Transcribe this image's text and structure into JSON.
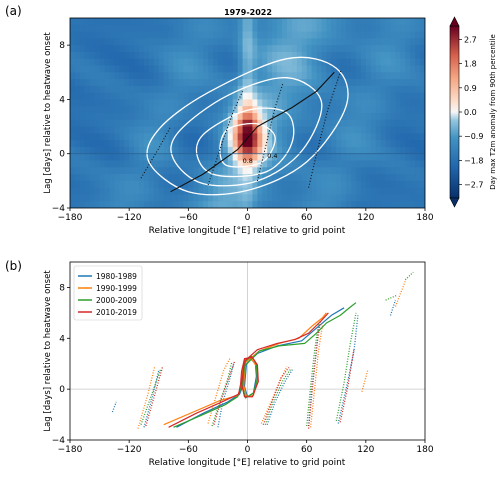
{
  "figure": {
    "panel_a_label": "(a)",
    "panel_b_label": "(b)"
  },
  "chart_data": [
    {
      "type": "heatmap",
      "title": "1979-2022",
      "xlabel": "Relative longitude [°E] relative to grid point",
      "ylabel": "Lag [days] relative to heatwave onset",
      "xlim": [
        -180,
        180
      ],
      "ylim": [
        -4,
        10
      ],
      "xticks": [
        "−180",
        "−120",
        "−60",
        "0",
        "60",
        "120",
        "180"
      ],
      "yticks": [
        "−4",
        "0",
        "4",
        "8"
      ],
      "colorbar": {
        "label": "Day max T2m anomaly from 90th percentile",
        "range": [
          -3.2,
          3.2
        ],
        "ticks": [
          "2.7",
          "1.8",
          "0.9",
          "0.0",
          "−0.9",
          "−1.8",
          "−2.7"
        ],
        "low_color": "#08306b",
        "mid_color": "#f7f7f7",
        "high_color": "#67001f"
      },
      "contour_labels": [
        "0.8",
        "0.4"
      ],
      "contours": [
        {
          "value": 0.2,
          "points": [
            [
              -60,
              -2.8
            ],
            [
              0,
              -2.7
            ],
            [
              60,
              -0.6
            ],
            [
              100,
              3.5
            ],
            [
              90,
              6.3
            ],
            [
              40,
              7.0
            ],
            [
              -40,
              4.5
            ],
            [
              -90,
              1.8
            ],
            [
              -100,
              -0.6
            ]
          ]
        },
        {
          "value": 0.4,
          "points": [
            [
              -45,
              -2.2
            ],
            [
              10,
              -2.0
            ],
            [
              55,
              0.2
            ],
            [
              75,
              3.8
            ],
            [
              40,
              5.6
            ],
            [
              -20,
              4.3
            ],
            [
              -70,
              1.6
            ],
            [
              -75,
              -0.4
            ]
          ]
        },
        {
          "value": 0.6,
          "points": [
            [
              -30,
              -1.6
            ],
            [
              20,
              -1.3
            ],
            [
              45,
              0.8
            ],
            [
              40,
              3.0
            ],
            [
              0,
              3.2
            ],
            [
              -45,
              1.4
            ],
            [
              -50,
              -0.4
            ]
          ]
        },
        {
          "value": 0.8,
          "points": [
            [
              -20,
              -0.9
            ],
            [
              15,
              -0.6
            ],
            [
              28,
              1.2
            ],
            [
              10,
              2.2
            ],
            [
              -20,
              1.8
            ],
            [
              -28,
              0.3
            ]
          ]
        }
      ],
      "mean_track": [
        [
          -78,
          -2.8
        ],
        [
          -45,
          -1.5
        ],
        [
          -10,
          0.3
        ],
        [
          10,
          2.0
        ],
        [
          45,
          3.4
        ],
        [
          70,
          4.6
        ],
        [
          88,
          6.0
        ]
      ],
      "dotted_tracks": [
        [
          [
            -108,
            -1.8
          ],
          [
            -90,
            0.4
          ],
          [
            -78,
            2.0
          ]
        ],
        [
          [
            -40,
            -2.3
          ],
          [
            -28,
            0.3
          ],
          [
            -15,
            3.0
          ],
          [
            -5,
            4.6
          ]
        ],
        [
          [
            10,
            -2.0
          ],
          [
            20,
            1.0
          ],
          [
            28,
            3.4
          ],
          [
            36,
            5.2
          ]
        ],
        [
          [
            62,
            -2.5
          ],
          [
            72,
            0.6
          ],
          [
            82,
            3.4
          ],
          [
            95,
            6.2
          ]
        ]
      ]
    },
    {
      "type": "line",
      "xlabel": "Relative longitude [°E] relative to grid point",
      "ylabel": "Lag [days] relative to heatwave onset",
      "xlim": [
        -180,
        180
      ],
      "ylim": [
        -4,
        10
      ],
      "xticks": [
        "−180",
        "−120",
        "−60",
        "0",
        "60",
        "120",
        "180"
      ],
      "yticks": [
        "−4",
        "0",
        "4",
        "8"
      ],
      "legend_position": "top-left",
      "series": [
        {
          "name": "1980-1989",
          "color": "#1f77b4",
          "main": [
            [
              -72,
              -3.0
            ],
            [
              -45,
              -1.9
            ],
            [
              -20,
              -1.0
            ],
            [
              -8,
              -0.4
            ],
            [
              -4,
              0.4
            ],
            [
              -3,
              1.4
            ],
            [
              -2,
              2.2
            ],
            [
              3,
              2.4
            ],
            [
              8,
              2.0
            ],
            [
              9,
              1.0
            ],
            [
              6,
              -0.3
            ],
            [
              0,
              -0.6
            ],
            [
              -3,
              0.2
            ],
            [
              -1,
              2.0
            ],
            [
              10,
              2.8
            ],
            [
              30,
              3.4
            ],
            [
              55,
              3.8
            ],
            [
              70,
              4.8
            ],
            [
              85,
              5.8
            ],
            [
              98,
              6.4
            ]
          ],
          "dotted": [
            [
              [
                -137,
                -1.8
              ],
              [
                -133,
                -1.0
              ]
            ],
            [
              [
                -105,
                -3.0
              ],
              [
                -96,
                -0.5
              ],
              [
                -90,
                1.5
              ]
            ],
            [
              [
                -30,
                -3.0
              ],
              [
                -25,
                -1.0
              ],
              [
                -18,
                0.8
              ],
              [
                -14,
                2.0
              ]
            ],
            [
              [
                20,
                -2.8
              ],
              [
                28,
                -1.0
              ],
              [
                38,
                0.6
              ],
              [
                46,
                1.6
              ]
            ],
            [
              [
                62,
                -2.9
              ],
              [
                65,
                0.0
              ],
              [
                70,
                3.0
              ],
              [
                72,
                5.0
              ]
            ],
            [
              [
                92,
                -2.7
              ],
              [
                100,
                0.0
              ],
              [
                108,
                3.0
              ],
              [
                112,
                5.8
              ]
            ],
            [
              [
                145,
                5.8
              ],
              [
                150,
                7.0
              ]
            ]
          ]
        },
        {
          "name": "1990-1999",
          "color": "#ff7f0e",
          "main": [
            [
              -85,
              -2.8
            ],
            [
              -55,
              -1.8
            ],
            [
              -28,
              -0.9
            ],
            [
              -10,
              -0.5
            ],
            [
              -6,
              0.3
            ],
            [
              -5,
              1.4
            ],
            [
              -3,
              2.3
            ],
            [
              4,
              2.4
            ],
            [
              9,
              1.8
            ],
            [
              10,
              0.7
            ],
            [
              6,
              -0.5
            ],
            [
              -1,
              -0.6
            ],
            [
              -4,
              0.3
            ],
            [
              -2,
              2.1
            ],
            [
              12,
              3.0
            ],
            [
              32,
              3.6
            ],
            [
              52,
              4.0
            ],
            [
              66,
              5.0
            ],
            [
              76,
              5.6
            ],
            [
              80,
              6.0
            ]
          ],
          "dotted": [
            [
              [
                -111,
                -3.1
              ],
              [
                -101,
                -0.4
              ],
              [
                -94,
                1.8
              ]
            ],
            [
              [
                -40,
                -2.7
              ],
              [
                -32,
                -0.6
              ],
              [
                -24,
                1.5
              ],
              [
                -18,
                2.4
              ]
            ],
            [
              [
                14,
                -2.7
              ],
              [
                24,
                -1.0
              ],
              [
                34,
                0.8
              ],
              [
                40,
                1.8
              ]
            ],
            [
              [
                64,
                -3.0
              ],
              [
                68,
                0.0
              ],
              [
                72,
                3.0
              ],
              [
                76,
                5.0
              ]
            ],
            [
              [
                116,
                -0.2
              ],
              [
                122,
                1.5
              ]
            ],
            [
              [
                150,
                6.5
              ],
              [
                160,
                8.5
              ]
            ]
          ]
        },
        {
          "name": "2000-2009",
          "color": "#2ca02c",
          "main": [
            [
              -75,
              -3.0
            ],
            [
              -48,
              -2.1
            ],
            [
              -22,
              -1.2
            ],
            [
              -10,
              -0.6
            ],
            [
              -6,
              0.2
            ],
            [
              -4,
              1.3
            ],
            [
              -2,
              2.2
            ],
            [
              4,
              2.6
            ],
            [
              9,
              2.0
            ],
            [
              10,
              0.8
            ],
            [
              6,
              -0.3
            ],
            [
              -2,
              -0.7
            ],
            [
              -5,
              0.2
            ],
            [
              -3,
              1.8
            ],
            [
              12,
              3.0
            ],
            [
              32,
              3.4
            ],
            [
              58,
              3.6
            ],
            [
              70,
              4.4
            ],
            [
              80,
              5.2
            ],
            [
              94,
              5.8
            ],
            [
              105,
              6.5
            ],
            [
              110,
              6.8
            ]
          ],
          "dotted": [
            [
              [
                -108,
                -2.8
              ],
              [
                -98,
                -0.6
              ],
              [
                -88,
                1.6
              ]
            ],
            [
              [
                -36,
                -2.9
              ],
              [
                -28,
                -1.0
              ],
              [
                -20,
                0.8
              ],
              [
                -16,
                2.1
              ]
            ],
            [
              [
                18,
                -2.8
              ],
              [
                26,
                -1.0
              ],
              [
                36,
                0.7
              ],
              [
                44,
                1.6
              ]
            ],
            [
              [
                60,
                -2.9
              ],
              [
                64,
                0.2
              ],
              [
                68,
                3.0
              ],
              [
                72,
                5.2
              ]
            ],
            [
              [
                90,
                -2.5
              ],
              [
                98,
                0.5
              ],
              [
                104,
                3.5
              ],
              [
                110,
                6.0
              ]
            ],
            [
              [
                140,
                7.0
              ],
              [
                152,
                7.4
              ]
            ],
            [
              [
                160,
                8.6
              ],
              [
                168,
                9.2
              ]
            ]
          ]
        },
        {
          "name": "2010-2019",
          "color": "#d62728",
          "main": [
            [
              -80,
              -3.0
            ],
            [
              -52,
              -1.9
            ],
            [
              -26,
              -1.0
            ],
            [
              -9,
              -0.4
            ],
            [
              -7,
              0.4
            ],
            [
              -6,
              1.4
            ],
            [
              -3,
              2.4
            ],
            [
              5,
              2.5
            ],
            [
              10,
              1.9
            ],
            [
              11,
              0.6
            ],
            [
              5,
              -0.6
            ],
            [
              -3,
              -0.6
            ],
            [
              -6,
              0.4
            ],
            [
              -3,
              2.2
            ],
            [
              10,
              3.1
            ],
            [
              30,
              3.6
            ],
            [
              48,
              3.9
            ],
            [
              62,
              4.4
            ],
            [
              75,
              5.4
            ],
            [
              82,
              6.0
            ]
          ],
          "dotted": [
            [
              [
                -103,
                -2.9
              ],
              [
                -95,
                -0.7
              ],
              [
                -86,
                1.8
              ]
            ],
            [
              [
                -34,
                -2.8
              ],
              [
                -27,
                -0.9
              ],
              [
                -19,
                0.9
              ],
              [
                -13,
                2.2
              ]
            ],
            [
              [
                16,
                -2.8
              ],
              [
                25,
                -0.9
              ],
              [
                34,
                0.9
              ],
              [
                42,
                1.7
              ]
            ],
            [
              [
                62,
                -3.1
              ],
              [
                66,
                0.2
              ],
              [
                70,
                3.2
              ],
              [
                74,
                5.4
              ]
            ],
            [
              [
                94,
                -2.6
              ],
              [
                102,
                0.3
              ],
              [
                108,
                3.2
              ]
            ]
          ]
        }
      ]
    }
  ]
}
